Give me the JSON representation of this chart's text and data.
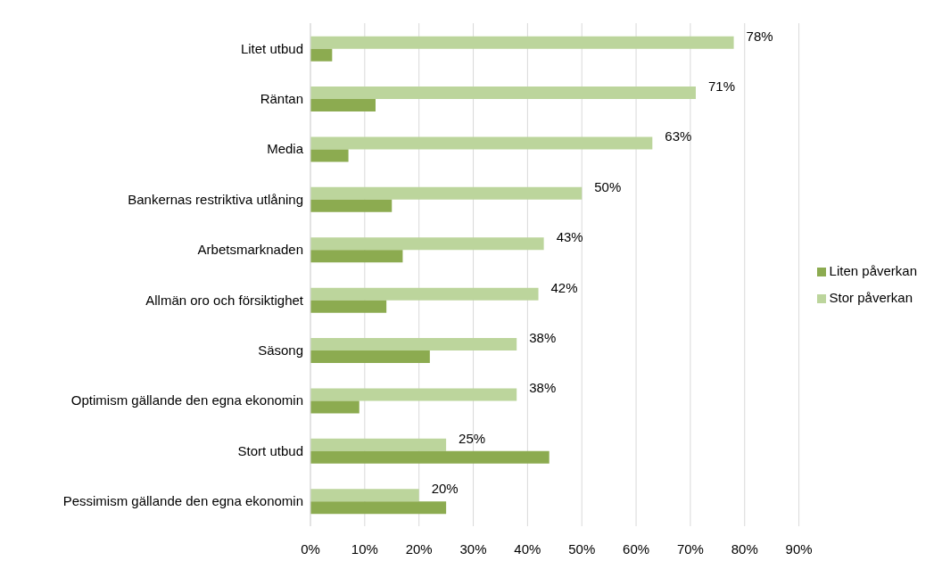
{
  "chart_data": {
    "type": "bar",
    "orientation": "horizontal",
    "categories": [
      "Litet utbud",
      "Räntan",
      "Media",
      "Bankernas restriktiva utlåning",
      "Arbetsmarknaden",
      "Allmän oro och försiktighet",
      "Säsong",
      "Optimism gällande den egna ekonomin",
      "Stort utbud",
      "Pessimism gällande den egna ekonomin"
    ],
    "series": [
      {
        "name": "Stor påverkan",
        "color": "#bcd59c",
        "values": [
          78,
          71,
          63,
          50,
          43,
          42,
          38,
          38,
          25,
          20
        ],
        "value_labels": [
          "78%",
          "71%",
          "63%",
          "50%",
          "43%",
          "42%",
          "38%",
          "38%",
          "25%",
          "20%"
        ]
      },
      {
        "name": "Liten påverkan",
        "color": "#8cab50",
        "values": [
          4,
          12,
          7,
          15,
          17,
          14,
          22,
          9,
          44,
          25
        ]
      }
    ],
    "xlim": [
      0,
      90
    ],
    "xticks": [
      {
        "value": 0,
        "label": "0%"
      },
      {
        "value": 10,
        "label": "10%"
      },
      {
        "value": 20,
        "label": "20%"
      },
      {
        "value": 30,
        "label": "30%"
      },
      {
        "value": 40,
        "label": "40%"
      },
      {
        "value": 50,
        "label": "50%"
      },
      {
        "value": 60,
        "label": "60%"
      },
      {
        "value": 70,
        "label": "70%"
      },
      {
        "value": 80,
        "label": "80%"
      },
      {
        "value": 90,
        "label": "90%"
      }
    ],
    "grid": "x",
    "legend": "right"
  }
}
